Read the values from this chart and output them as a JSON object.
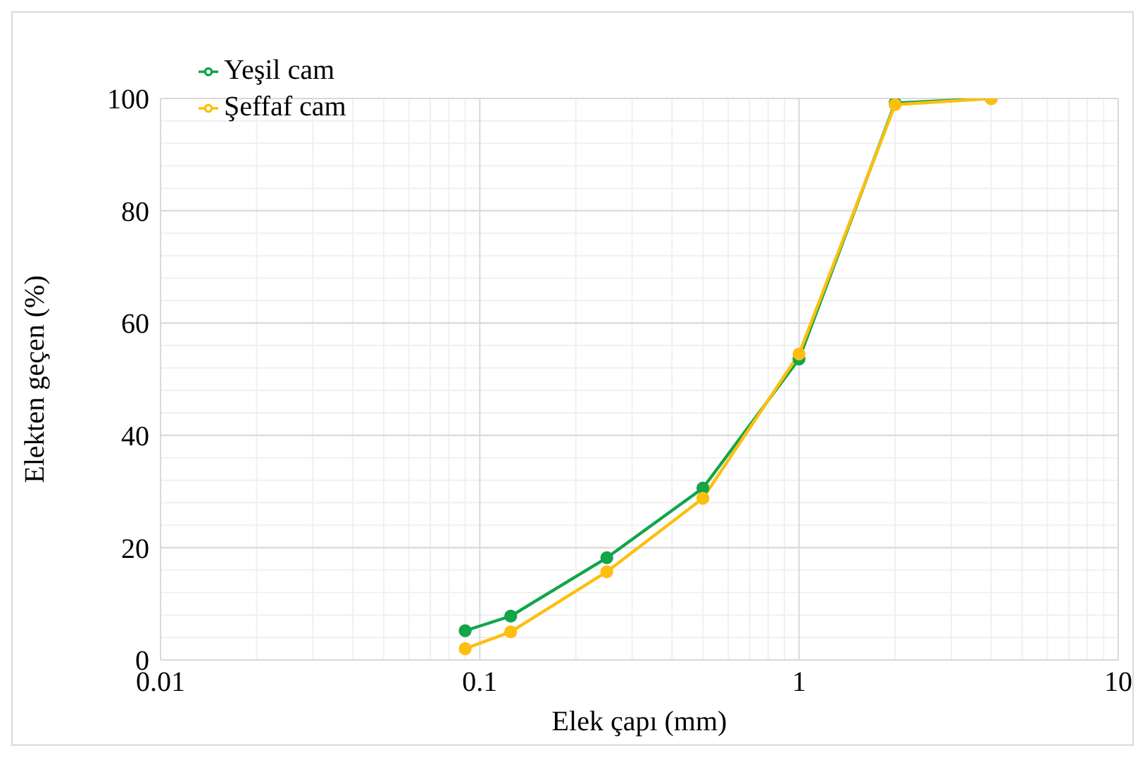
{
  "chart_data": {
    "type": "line",
    "xlabel": "Elek çapı (mm)",
    "ylabel": "Elekten geçen (%)",
    "log": "x",
    "x": [
      0.09,
      0.125,
      0.25,
      0.5,
      1,
      2,
      4
    ],
    "series": [
      {
        "name": "Yeşil cam",
        "color": "#12a54a",
        "values": [
          5.2,
          7.8,
          18.2,
          30.6,
          53.6,
          99.2,
          100
        ]
      },
      {
        "name": "Şeffaf cam",
        "color": "#fdbf0f",
        "values": [
          2.0,
          5.0,
          15.7,
          28.8,
          54.5,
          98.9,
          100
        ]
      }
    ],
    "xlim": [
      0.01,
      10
    ],
    "xticks": [
      0.01,
      0.1,
      1,
      10
    ],
    "ylim": [
      0,
      100
    ],
    "yticks": [
      0,
      20,
      40,
      60,
      80,
      100
    ],
    "grid": true,
    "legend": "top left",
    "marker": "circle"
  }
}
